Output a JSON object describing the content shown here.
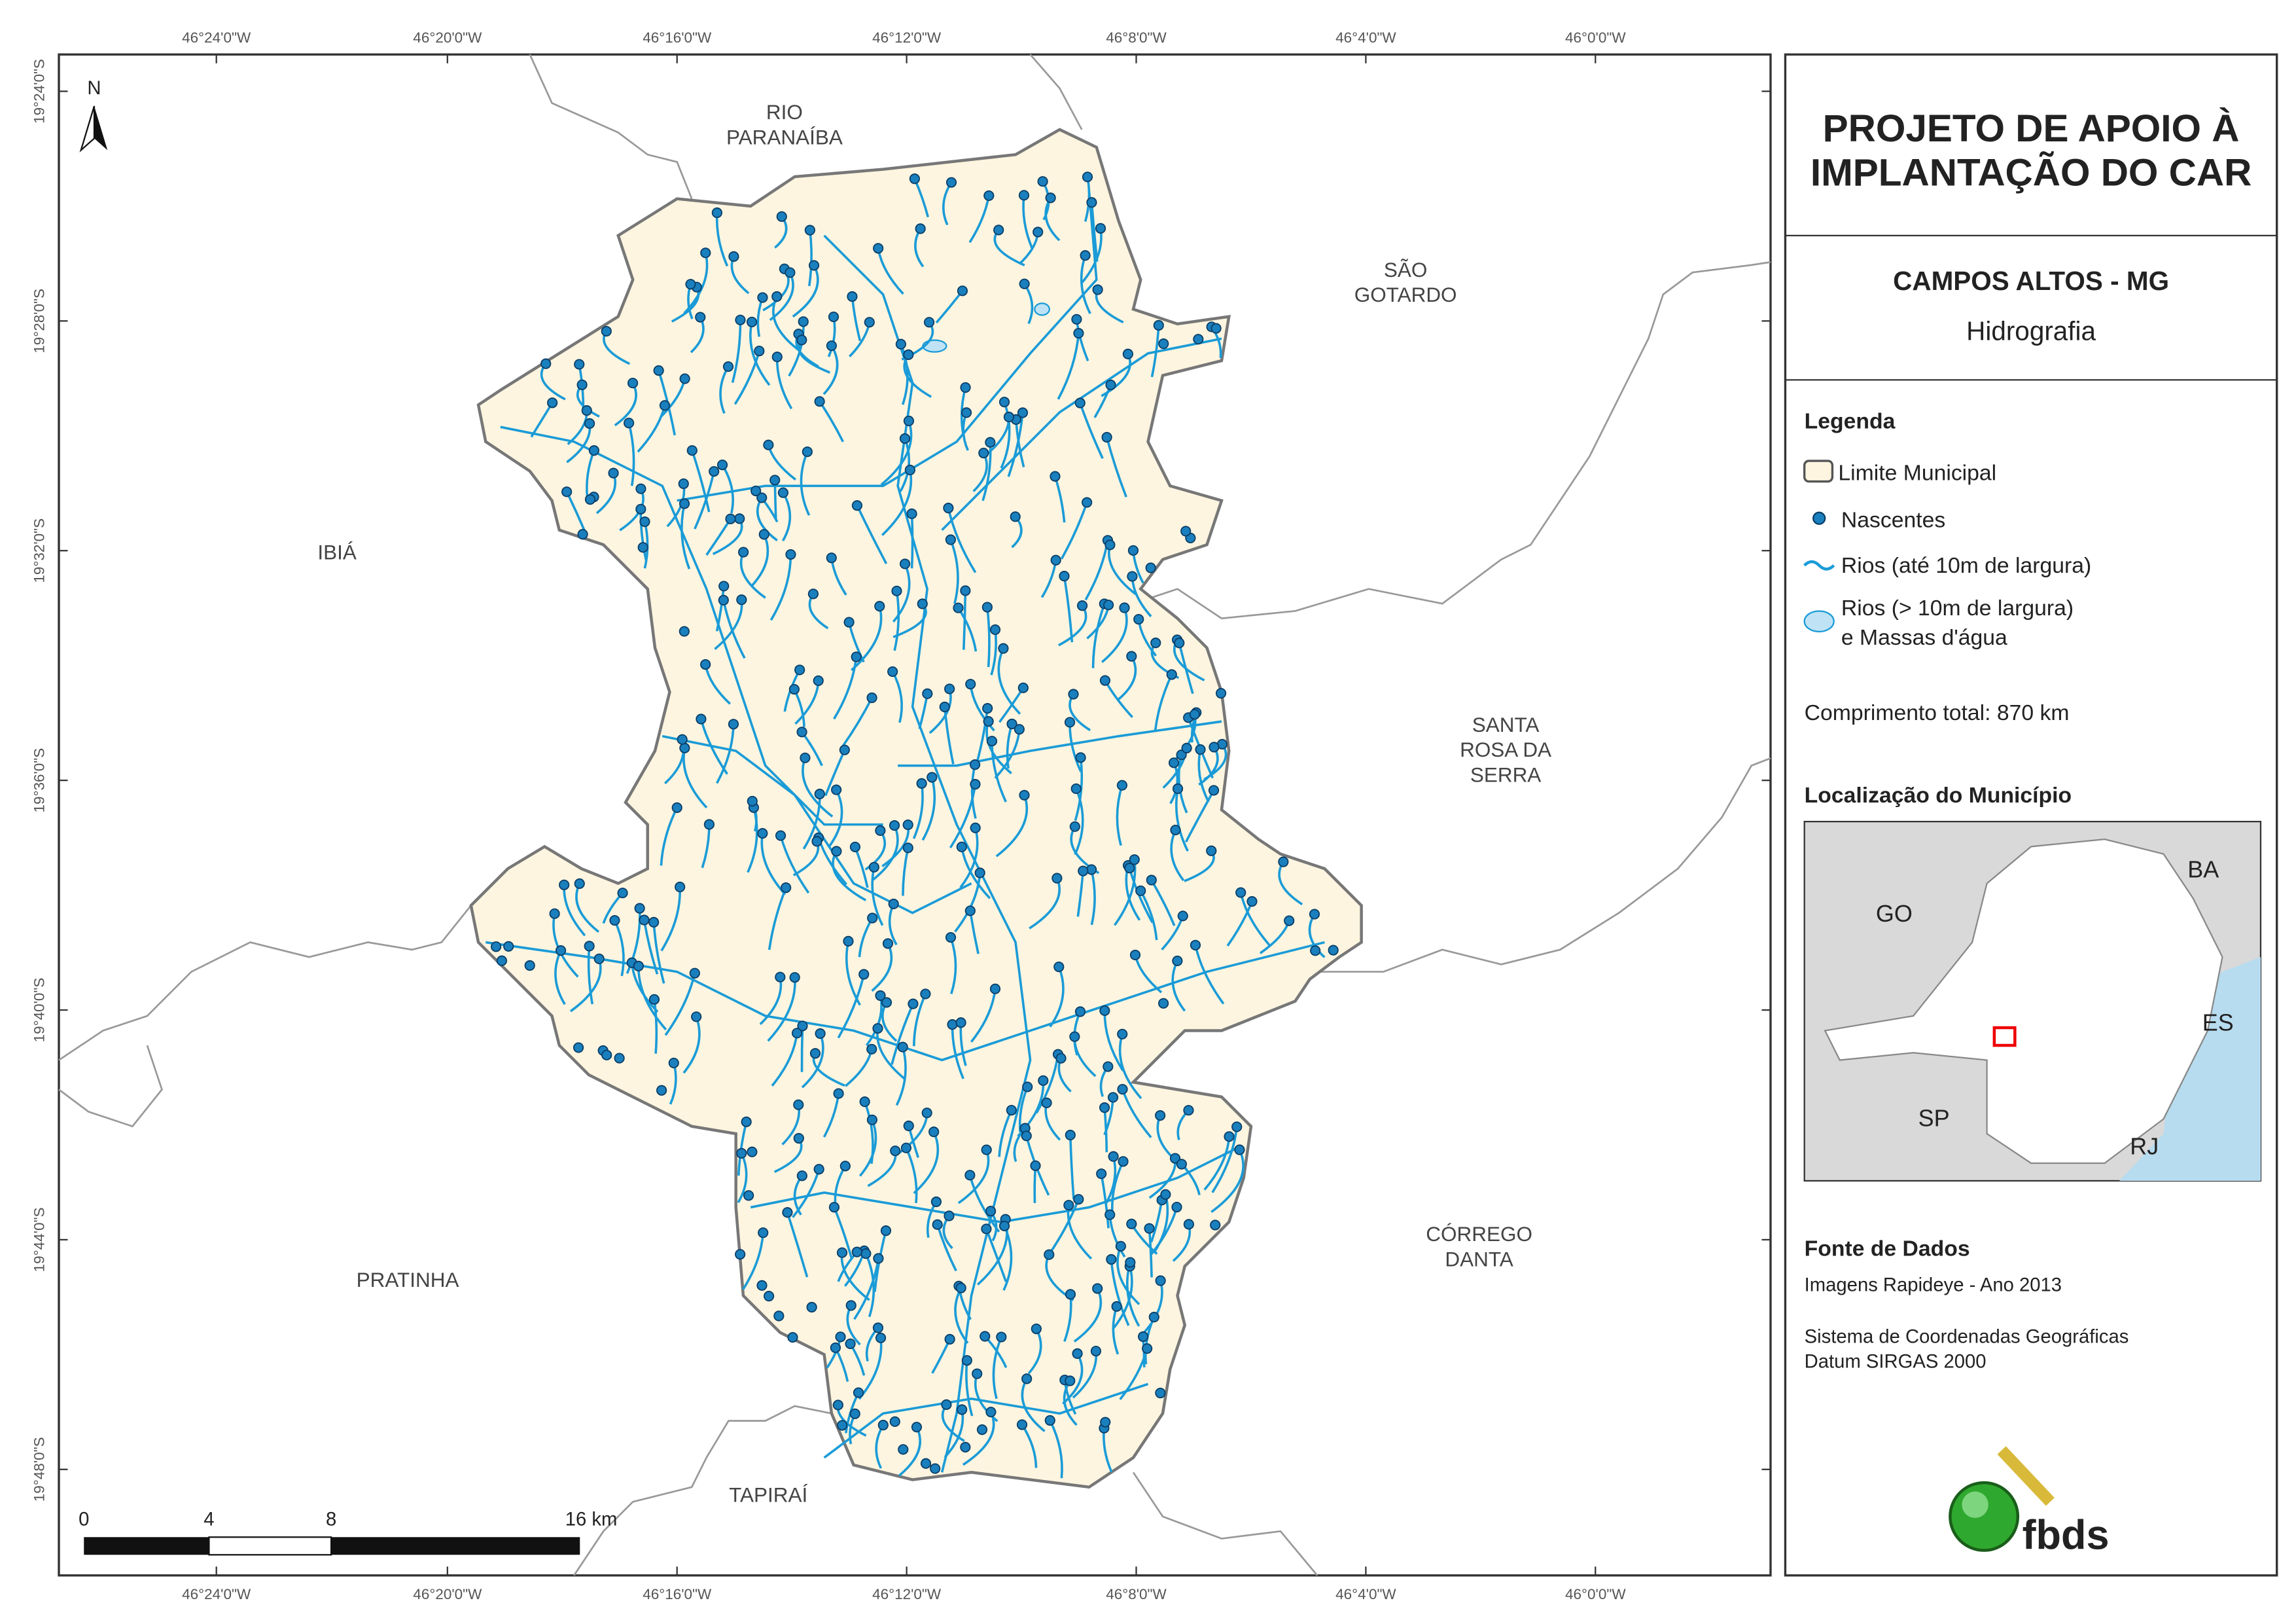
{
  "map": {
    "north": "N",
    "lon_labels": [
      "46°24'0\"W",
      "46°20'0\"W",
      "46°16'0\"W",
      "46°12'0\"W",
      "46°8'0\"W",
      "46°4'0\"W",
      "46°0'0\"W"
    ],
    "lat_labels": [
      "19°24'0\"S",
      "19°28'0\"S",
      "19°32'0\"S",
      "19°36'0\"S",
      "19°40'0\"S",
      "19°44'0\"S",
      "19°48'0\"S"
    ],
    "places": [
      {
        "lines": [
          "RIO",
          "PARANAÍBA"
        ]
      },
      {
        "lines": [
          "SÃO",
          "GOTARDO"
        ]
      },
      {
        "lines": [
          "IBIÁ"
        ]
      },
      {
        "lines": [
          "SANTA",
          "ROSA DA",
          "SERRA"
        ]
      },
      {
        "lines": [
          "PRATINHA"
        ]
      },
      {
        "lines": [
          "CÓRREGO",
          "DANTA"
        ]
      },
      {
        "lines": [
          "TAPIRAÍ"
        ]
      }
    ],
    "scale_labels": [
      "0",
      "4",
      "8",
      "16 km"
    ]
  },
  "panel": {
    "title": [
      "PROJETO DE APOIO À",
      "IMPLANTAÇÃO DO CAR"
    ],
    "municipality": "CAMPOS ALTOS - MG",
    "theme": "Hidrografia",
    "legend_title": "Legenda",
    "legend_items": [
      "Limite Municipal",
      "Nascentes",
      "Rios (até 10m de largura)",
      [
        "Rios (> 10m de largura)",
        "e Massas d'água"
      ]
    ],
    "total_length": "Comprimento total:  870 km",
    "location_title": "Localização do Município",
    "inset_labels": [
      "GO",
      "BA",
      "ES",
      "SP",
      "RJ"
    ],
    "source_title": "Fonte de Dados",
    "source_lines": [
      "Imagens Rapideye - Ano 2013",
      "Sistema de Coordenadas Geográficas",
      "Datum SIRGAS 2000"
    ],
    "logo": "fbds"
  }
}
